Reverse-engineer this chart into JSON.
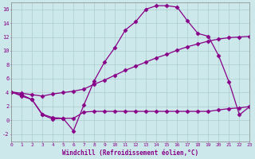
{
  "xlabel": "Windchill (Refroidissement éolien,°C)",
  "bg_color": "#cce8ea",
  "grid_color": "#aacccc",
  "line_color": "#880088",
  "xmin": 0,
  "xmax": 23,
  "ymin": -3,
  "ymax": 17,
  "yticks": [
    -2,
    0,
    2,
    4,
    6,
    8,
    10,
    12,
    14,
    16
  ],
  "xticks": [
    0,
    1,
    2,
    3,
    4,
    5,
    6,
    7,
    8,
    9,
    10,
    11,
    12,
    13,
    14,
    15,
    16,
    17,
    18,
    19,
    20,
    21,
    22,
    23
  ],
  "line1_x": [
    0,
    1,
    2,
    3,
    4,
    5,
    6,
    7,
    8,
    9,
    10,
    11,
    12,
    13,
    14,
    15,
    16,
    17,
    18,
    19,
    20,
    21,
    22,
    23
  ],
  "line1_y": [
    4.1,
    3.7,
    3.0,
    0.8,
    0.2,
    0.3,
    -1.5,
    2.2,
    5.7,
    8.4,
    10.5,
    13.0,
    14.2,
    16.0,
    16.5,
    16.5,
    16.3,
    14.3,
    12.5,
    12.1,
    9.3,
    5.5,
    0.8,
    2.0
  ],
  "line2_x": [
    0,
    1,
    2,
    3,
    4,
    5,
    6,
    7,
    8,
    9,
    10,
    11,
    12,
    13,
    14,
    15,
    16,
    17,
    18,
    19,
    20,
    21,
    22,
    23
  ],
  "line2_y": [
    4.1,
    3.9,
    3.7,
    3.5,
    3.8,
    4.0,
    4.2,
    4.5,
    5.2,
    5.8,
    6.5,
    7.2,
    7.8,
    8.4,
    9.0,
    9.5,
    10.1,
    10.6,
    11.0,
    11.4,
    11.7,
    11.9,
    12.0,
    12.1
  ],
  "line3_x": [
    0,
    1,
    2,
    3,
    4,
    5,
    6,
    7,
    8,
    9,
    10,
    11,
    12,
    13,
    14,
    15,
    16,
    17,
    18,
    19,
    20,
    21,
    22,
    23
  ],
  "line3_y": [
    4.1,
    3.5,
    3.0,
    0.9,
    0.4,
    0.3,
    0.3,
    1.2,
    1.3,
    1.3,
    1.3,
    1.3,
    1.3,
    1.3,
    1.3,
    1.3,
    1.3,
    1.3,
    1.3,
    1.3,
    1.5,
    1.7,
    1.8,
    2.0
  ]
}
